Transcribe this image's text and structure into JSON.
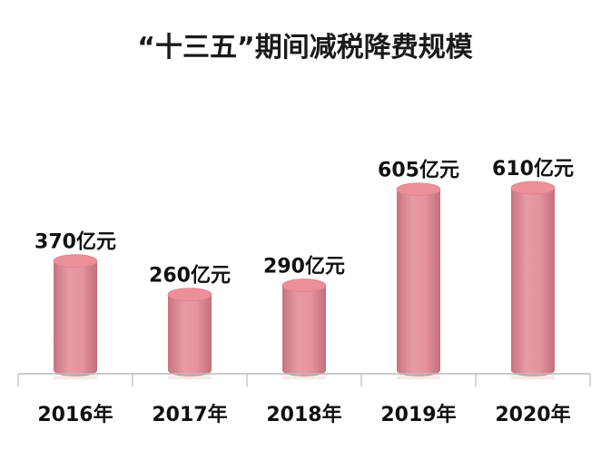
{
  "chart_data": {
    "type": "bar",
    "title": "“十三五”期间减税降费规模",
    "categories": [
      "2016年",
      "2017年",
      "2018年",
      "2019年",
      "2020年"
    ],
    "values": [
      370,
      260,
      290,
      605,
      610
    ],
    "value_labels": [
      "370亿元",
      "260亿元",
      "290亿元",
      "605亿元",
      "610亿元"
    ],
    "unit": "亿元",
    "ylim": [
      0,
      700
    ],
    "grid": false,
    "legend": "none"
  },
  "colors": {
    "bar_body": "#e0929c",
    "bar_top": "#ed8f98",
    "bar_shadow": "#c97280",
    "axis": "#bbbbbb"
  }
}
